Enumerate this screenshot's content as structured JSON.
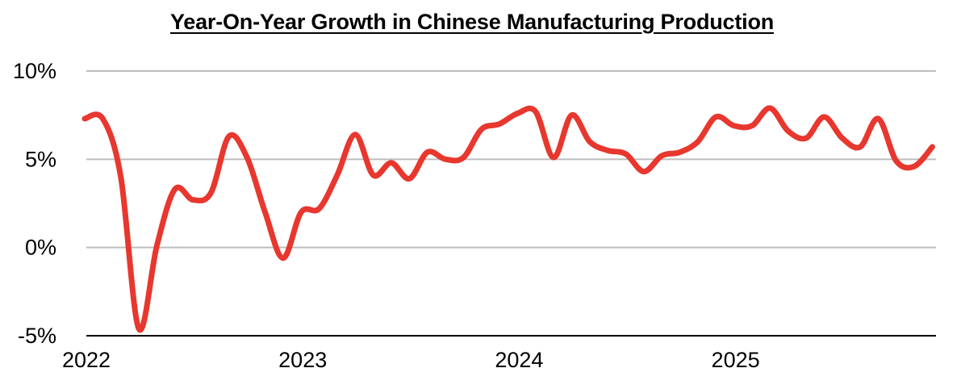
{
  "chart_data": {
    "type": "line",
    "title": "Year-On-Year Growth in Chinese Manufacturing Production",
    "xlabel": "",
    "ylabel": "",
    "x_ticks": [
      "2022",
      "2023",
      "2024",
      "2025"
    ],
    "y_ticks": [
      "-5%",
      "0%",
      "5%",
      "10%"
    ],
    "y_tick_values": [
      -5,
      0,
      5,
      10
    ],
    "ylim": [
      -5,
      10
    ],
    "grid": true,
    "legend": "none",
    "line_color": "#e8372e",
    "grid_color": "#bdbdbd",
    "axis_color": "#000000",
    "series": [
      {
        "x": [
          "2022-01",
          "2022-02",
          "2022-03",
          "2022-04",
          "2022-05",
          "2022-06",
          "2022-07",
          "2022-08",
          "2022-09",
          "2022-10",
          "2022-11",
          "2022-12",
          "2023-01",
          "2023-02",
          "2023-03",
          "2023-04",
          "2023-05",
          "2023-06",
          "2023-07",
          "2023-08",
          "2023-09",
          "2023-10",
          "2023-11",
          "2023-12",
          "2024-01",
          "2024-02",
          "2024-03",
          "2024-04",
          "2024-05",
          "2024-06",
          "2024-07",
          "2024-08",
          "2024-09",
          "2024-10",
          "2024-11",
          "2024-12",
          "2025-01",
          "2025-02",
          "2025-03",
          "2025-04",
          "2025-05",
          "2025-06",
          "2025-07",
          "2025-08",
          "2025-09",
          "2025-10",
          "2025-11",
          "2025-12"
        ],
        "values": [
          7.3,
          7.3,
          4.0,
          -4.6,
          0.1,
          3.3,
          2.7,
          3.1,
          6.3,
          5.1,
          2.0,
          -0.6,
          2.0,
          2.2,
          4.1,
          6.4,
          4.1,
          4.8,
          3.9,
          5.4,
          5.0,
          5.1,
          6.7,
          7.0,
          7.6,
          7.7,
          5.1,
          7.5,
          6.0,
          5.5,
          5.3,
          4.3,
          5.2,
          5.4,
          6.0,
          7.4,
          6.9,
          6.9,
          7.9,
          6.6,
          6.2,
          7.4,
          6.2,
          5.7,
          7.3,
          4.9,
          4.6,
          5.7
        ]
      }
    ]
  }
}
